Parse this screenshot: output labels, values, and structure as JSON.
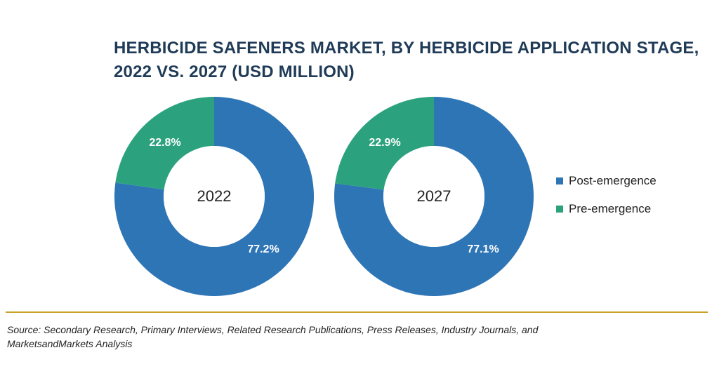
{
  "title": {
    "line1": "HERBICIDE SAFENERS MARKET, BY HERBICIDE APPLICATION STAGE,",
    "line2": "2022 VS. 2027 (USD MILLION)"
  },
  "colors": {
    "post": "#2e75b6",
    "pre": "#2ba27d",
    "title": "#1f3b57",
    "rule": "#c9a227"
  },
  "chart_data": [
    {
      "type": "pie",
      "center_label": "2022",
      "series": [
        {
          "name": "Post-emergence",
          "value": 77.2,
          "label": "77.2%"
        },
        {
          "name": "Pre-emergence",
          "value": 22.8,
          "label": "22.8%"
        }
      ]
    },
    {
      "type": "pie",
      "center_label": "2027",
      "series": [
        {
          "name": "Post-emergence",
          "value": 77.1,
          "label": "77.1%"
        },
        {
          "name": "Pre-emergence",
          "value": 22.9,
          "label": "22.9%"
        }
      ]
    }
  ],
  "legend": {
    "items": [
      {
        "label": "Post-emergence",
        "color": "#2e75b6"
      },
      {
        "label": "Pre-emergence",
        "color": "#2ba27d"
      }
    ],
    "position": "right"
  },
  "source": {
    "line1": "Source: Secondary Research, Primary Interviews, Related Research Publications, Press Releases, Industry Journals, and",
    "line2": "MarketsandMarkets Analysis"
  }
}
